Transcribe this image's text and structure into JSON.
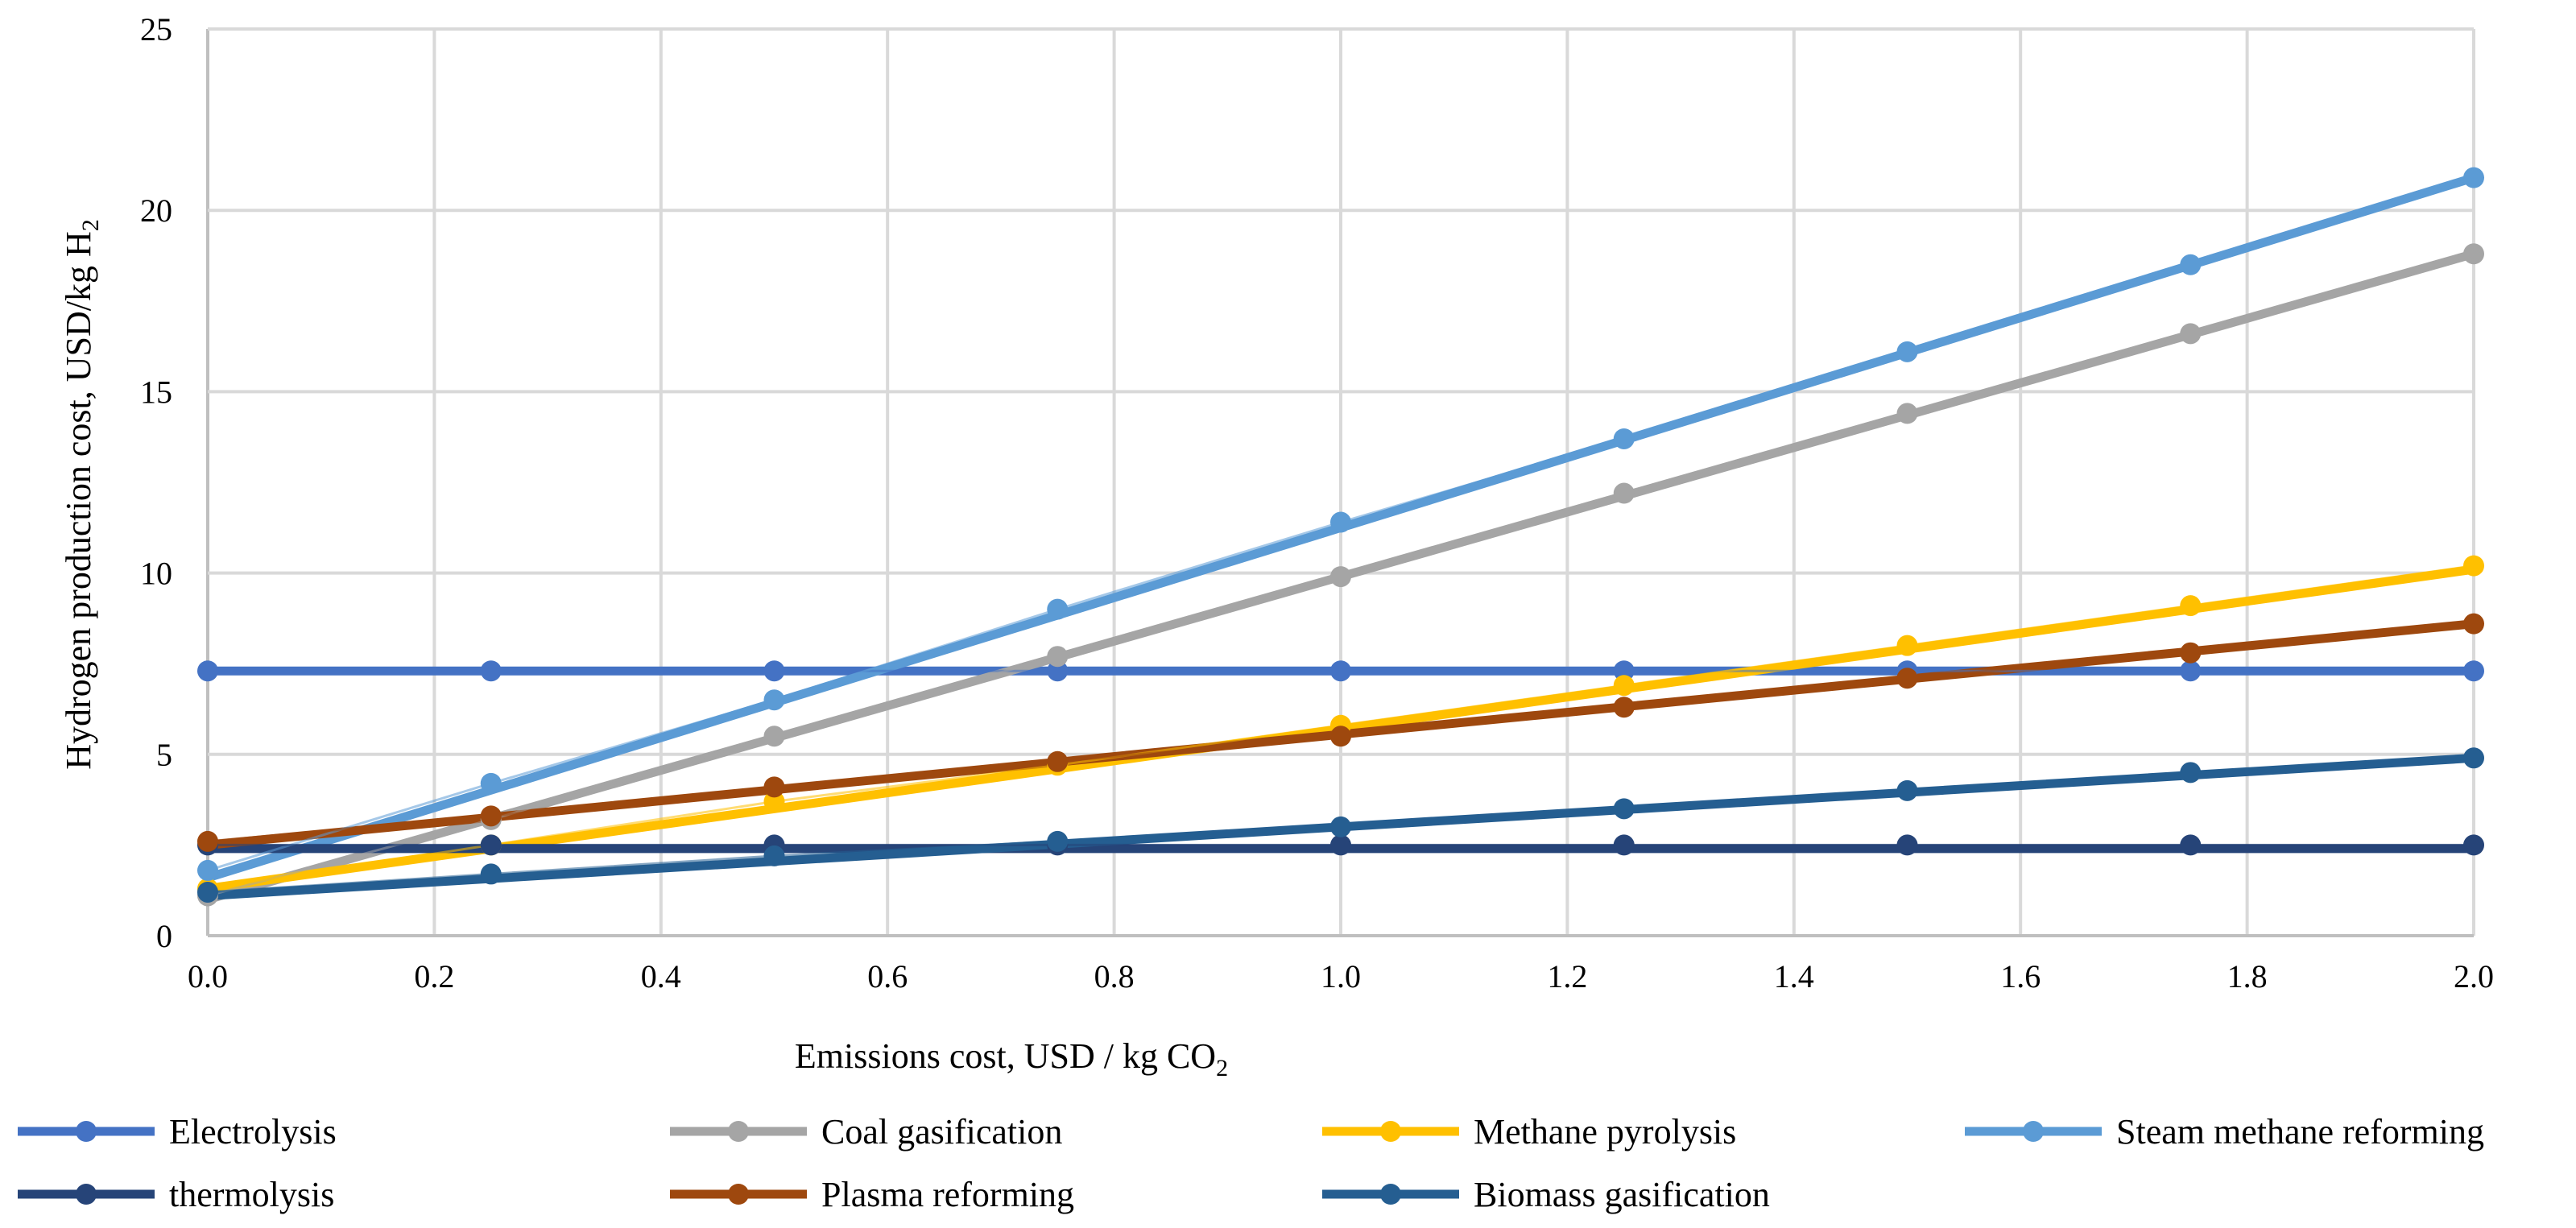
{
  "chart_data": {
    "type": "line",
    "title": "",
    "xlabel": "Emissions cost, USD / kg CO",
    "xlabel_sub": "2",
    "ylabel": "Hydrogen production cost, USD/kg H",
    "ylabel_sub": "2",
    "xlim": [
      0,
      2
    ],
    "ylim": [
      0,
      25
    ],
    "x_ticks": [
      "0.0",
      "0.2",
      "0.4",
      "0.6",
      "0.8",
      "1.0",
      "1.2",
      "1.4",
      "1.6",
      "1.8",
      "2.0"
    ],
    "y_ticks": [
      "0",
      "5",
      "10",
      "15",
      "20",
      "25"
    ],
    "x": [
      0,
      0.25,
      0.5,
      0.75,
      1.0,
      1.25,
      1.5,
      1.75,
      2.0
    ],
    "grid": true,
    "legend_position": "bottom",
    "series": [
      {
        "name": "Electrolysis",
        "color": "#4472c4",
        "values": [
          7.3,
          7.3,
          7.3,
          7.3,
          7.3,
          7.3,
          7.3,
          7.3,
          7.3
        ],
        "fit": [
          7.3,
          7.3
        ]
      },
      {
        "name": "Coal gasification",
        "color": "#a5a5a5",
        "values": [
          1.1,
          3.2,
          5.5,
          7.7,
          9.9,
          12.2,
          14.4,
          16.6,
          18.8
        ],
        "fit": [
          1.0,
          18.8
        ]
      },
      {
        "name": "Methane pyrolysis",
        "color": "#ffc000",
        "values": [
          1.3,
          2.5,
          3.7,
          4.7,
          5.8,
          6.9,
          8.0,
          9.1,
          10.2
        ],
        "fit": [
          1.3,
          10.1
        ]
      },
      {
        "name": "Steam methane reforming",
        "color": "#5b9bd5",
        "values": [
          1.8,
          4.2,
          6.5,
          9.0,
          11.4,
          13.7,
          16.1,
          18.5,
          20.9
        ],
        "fit": [
          1.6,
          20.9
        ]
      },
      {
        "name": "thermolysis",
        "color": "#264478",
        "values": [
          2.5,
          2.5,
          2.5,
          2.5,
          2.5,
          2.5,
          2.5,
          2.5,
          2.5
        ],
        "fit": [
          2.4,
          2.4
        ]
      },
      {
        "name": "Plasma reforming",
        "color": "#9e480e",
        "values": [
          2.6,
          3.3,
          4.1,
          4.8,
          5.5,
          6.3,
          7.1,
          7.8,
          8.6
        ],
        "fit": [
          2.5,
          8.6
        ]
      },
      {
        "name": "Biomass gasification",
        "color": "#255e91",
        "values": [
          1.2,
          1.7,
          2.2,
          2.6,
          3.0,
          3.5,
          4.0,
          4.5,
          4.9
        ],
        "fit": [
          1.1,
          4.9
        ]
      }
    ]
  }
}
